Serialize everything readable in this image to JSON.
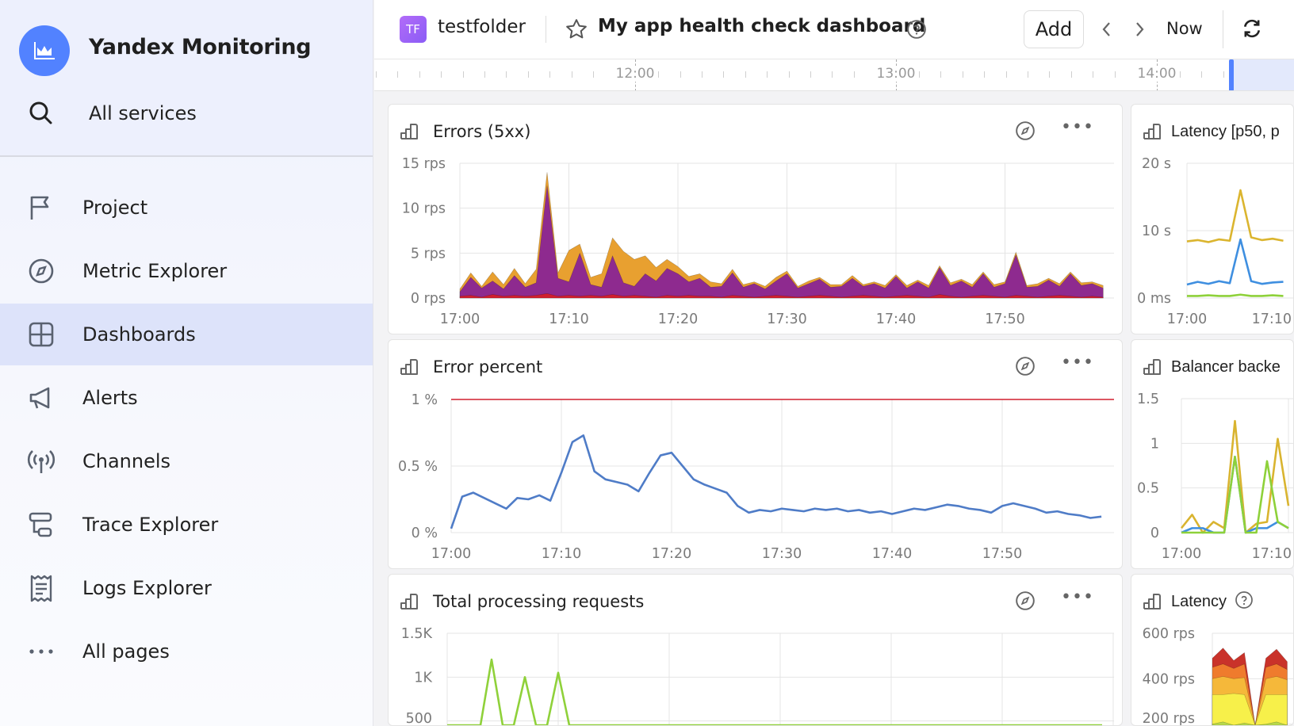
{
  "sidebar": {
    "app_title": "Yandex Monitoring",
    "search_label": "All services",
    "items": [
      {
        "label": "Project",
        "icon": "flag-icon"
      },
      {
        "label": "Metric Explorer",
        "icon": "compass-icon"
      },
      {
        "label": "Dashboards",
        "icon": "dashboard-grid-icon",
        "selected": true
      },
      {
        "label": "Alerts",
        "icon": "megaphone-icon"
      },
      {
        "label": "Channels",
        "icon": "broadcast-icon"
      },
      {
        "label": "Trace Explorer",
        "icon": "trace-icon"
      },
      {
        "label": "Logs Explorer",
        "icon": "logs-icon"
      },
      {
        "label": "All pages",
        "icon": "more-dots-icon"
      }
    ]
  },
  "header": {
    "folder_badge": "TF",
    "folder_name": "testfolder",
    "dashboard_title": "My app health check dashboard",
    "add_label": "Add",
    "now_label": "Now",
    "accent": "#5282ff",
    "badge_color": "#a062f7"
  },
  "timeline": {
    "labels": [
      "12:00",
      "13:00",
      "14:00"
    ]
  },
  "panels": [
    {
      "title": "Errors (5xx)"
    },
    {
      "title": "Error percent"
    },
    {
      "title": "Total processing requests"
    },
    {
      "title": "Latency [p50, p"
    },
    {
      "title": "Balancer backe"
    },
    {
      "title": "Latency"
    }
  ],
  "chart_data": [
    {
      "type": "area",
      "stacked": true,
      "title": "Errors (5xx)",
      "x_range": [
        "17:00",
        "18:00"
      ],
      "sample_interval": "1 min",
      "x_ticks": [
        "17:00",
        "17:10",
        "17:20",
        "17:30",
        "17:40",
        "17:50"
      ],
      "y_ticks": [
        "0 rps",
        "5 rps",
        "10 rps",
        "15 rps"
      ],
      "ylim": [
        0,
        15
      ],
      "grid": true,
      "series": [
        {
          "color": "#d01f2f",
          "values": [
            0.2,
            0.3,
            0.1,
            0.4,
            0.2,
            0.3,
            0.2,
            0.3,
            0.5,
            0.2,
            0.3,
            0.2,
            0.3,
            0.2,
            0.4,
            0.2,
            0.3,
            0.2,
            0.1,
            0.3,
            0.2,
            0.3,
            0.2,
            0.2,
            0.1,
            0.3,
            0.2,
            0.1,
            0.2,
            0.3,
            0.2,
            0.1,
            0.2,
            0.3,
            0.2,
            0.1,
            0.2,
            0.3,
            0.2,
            0.1,
            0.2,
            0.3,
            0.2,
            0.1,
            0.4,
            0.2,
            0.1,
            0.2,
            0.3,
            0.2,
            0.1,
            0.3,
            0.2,
            0.1,
            0.2,
            0.3,
            0.2,
            0.1,
            0.2,
            0.1
          ]
        },
        {
          "color": "#8e2a8f",
          "values": [
            0.5,
            2,
            1,
            1.5,
            0.8,
            2.2,
            1,
            1.4,
            12,
            2,
            1.5,
            4.8,
            1.2,
            1,
            4.3,
            1.5,
            1,
            2.5,
            1.8,
            3,
            2.5,
            1.5,
            2,
            1,
            1.2,
            2.5,
            1,
            1.5,
            0.8,
            1.6,
            2.5,
            1,
            1.4,
            1.8,
            1,
            1.2,
            2,
            1,
            1.4,
            1,
            2.2,
            0.8,
            1.6,
            1,
            3,
            1.2,
            1.8,
            1,
            2.4,
            1,
            1.5,
            4.5,
            1,
            1.2,
            1.8,
            1,
            2.5,
            1.3,
            1.4,
            1
          ]
        },
        {
          "color": "#e8a030",
          "values": [
            0.3,
            0.5,
            0.2,
            1,
            0.5,
            0.8,
            0.4,
            1.5,
            1.5,
            0.6,
            3.5,
            1,
            0.8,
            1.5,
            2,
            3.5,
            3,
            2,
            1.5,
            1,
            0.8,
            0.6,
            0.5,
            0.6,
            0.3,
            0.4,
            0.3,
            0.2,
            0.3,
            0.4,
            0.3,
            0.2,
            0.3,
            0.2,
            0.3,
            0.2,
            0.3,
            0.2,
            0.2,
            0.3,
            0.2,
            0.3,
            0.2,
            0.3,
            0.2,
            0.3,
            0.2,
            0.3,
            0.2,
            0.3,
            0.2,
            0.3,
            0.2,
            0.3,
            0.2,
            0.3,
            0.2,
            0.3,
            0.2,
            0.3
          ]
        }
      ]
    },
    {
      "type": "line",
      "title": "Error percent",
      "x_range": [
        "17:00",
        "18:00"
      ],
      "sample_interval": "1 min",
      "x_ticks": [
        "17:00",
        "17:10",
        "17:20",
        "17:30",
        "17:40",
        "17:50"
      ],
      "y_ticks": [
        "0 %",
        "0.5 %",
        "1 %"
      ],
      "ylim": [
        0,
        1
      ],
      "grid": true,
      "threshold": {
        "value": 1,
        "color": "#d01f2f"
      },
      "series": [
        {
          "color": "#4f7cc7",
          "values": [
            0.03,
            0.27,
            0.3,
            0.26,
            0.22,
            0.18,
            0.26,
            0.25,
            0.28,
            0.24,
            0.45,
            0.68,
            0.73,
            0.46,
            0.4,
            0.38,
            0.36,
            0.31,
            0.45,
            0.58,
            0.6,
            0.5,
            0.4,
            0.36,
            0.33,
            0.3,
            0.2,
            0.15,
            0.17,
            0.16,
            0.18,
            0.17,
            0.16,
            0.18,
            0.17,
            0.18,
            0.16,
            0.17,
            0.15,
            0.16,
            0.14,
            0.16,
            0.18,
            0.17,
            0.19,
            0.21,
            0.2,
            0.18,
            0.17,
            0.15,
            0.2,
            0.22,
            0.2,
            0.18,
            0.15,
            0.16,
            0.14,
            0.13,
            0.11,
            0.12
          ]
        }
      ]
    },
    {
      "type": "line",
      "title": "Total processing requests",
      "x_range": [
        "17:00",
        "18:00"
      ],
      "sample_interval": "1 min",
      "y_ticks": [
        "500",
        "1K",
        "1.5K"
      ],
      "ylim": [
        0,
        1500
      ],
      "grid": true,
      "series": [
        {
          "color": "#8fd13a",
          "values": [
            300,
            320,
            280,
            310,
            1200,
            300,
            290,
            1000,
            310,
            300,
            1050,
            290,
            300,
            310,
            400,
            300,
            290,
            320,
            450,
            300,
            310,
            300,
            290,
            300,
            310,
            300,
            290,
            300,
            310,
            300,
            290,
            300,
            310,
            300,
            290,
            300,
            310,
            300,
            290,
            300,
            310,
            300,
            420,
            300,
            290,
            300,
            310,
            300,
            290,
            300,
            310,
            300,
            290,
            300,
            310,
            300,
            290,
            300,
            310,
            300
          ]
        }
      ]
    },
    {
      "type": "line",
      "title": "Latency [p50, p",
      "x_range": [
        "17:00",
        "18:00"
      ],
      "sample_interval": "1 min",
      "x_ticks": [
        "17:00",
        "17:10"
      ],
      "y_ticks": [
        "0 ms",
        "10 s",
        "20 s"
      ],
      "ylim": [
        0,
        20
      ],
      "grid": true,
      "series": [
        {
          "color": "#dbb52f",
          "values": [
            8.4,
            8.6,
            8.3,
            8.7,
            8.5,
            16,
            9,
            8.6,
            8.8,
            8.5,
            16,
            8.8,
            8.5,
            8.7,
            8.6,
            8.4,
            8.6,
            8.5,
            8.7,
            8.5
          ]
        },
        {
          "color": "#3f8fe0",
          "values": [
            2,
            2.4,
            2.1,
            2.5,
            2.2,
            8.7,
            2.5,
            2.1,
            2.3,
            2.4,
            8.4,
            2.5,
            2.2,
            2.3,
            2.1,
            2.4,
            2.2,
            2.3,
            2.1,
            2.2
          ]
        },
        {
          "color": "#8ed13a",
          "values": [
            0.3,
            0.3,
            0.4,
            0.3,
            0.3,
            0.5,
            0.3,
            0.3,
            0.4,
            0.3,
            0.4,
            0.3,
            0.3,
            0.4,
            0.3,
            0.3,
            0.3,
            0.4,
            0.3,
            0.3
          ]
        }
      ]
    },
    {
      "type": "line",
      "title": "Balancer backe",
      "x_range": [
        "17:00",
        "18:00"
      ],
      "sample_interval": "1 min",
      "x_ticks": [
        "17:00",
        "17:10"
      ],
      "y_ticks": [
        "0",
        "0.5",
        "1",
        "1.5"
      ],
      "ylim": [
        0,
        1.5
      ],
      "grid": true,
      "series": [
        {
          "color": "#d9b430",
          "values": [
            0.05,
            0.2,
            0,
            0.12,
            0.05,
            1.25,
            0,
            0.1,
            0.12,
            1.05,
            0.3,
            0.25,
            0.1,
            0.15,
            0.1,
            0.2,
            0.1,
            0.12,
            0.1,
            0.15
          ]
        },
        {
          "color": "#3f8fe0",
          "values": [
            0,
            0.05,
            0.05,
            0,
            0,
            0.85,
            0,
            0.05,
            0.05,
            0.12,
            0.05,
            0.05,
            0,
            0.05,
            0,
            0.05,
            0,
            0.05,
            0,
            0.05
          ]
        },
        {
          "color": "#8ed13a",
          "values": [
            0,
            0,
            0,
            0,
            0,
            0.85,
            0,
            0,
            0.8,
            0.12,
            0.05,
            0,
            0,
            0.05,
            0,
            0,
            0,
            0.05,
            0,
            0
          ]
        }
      ]
    },
    {
      "type": "area",
      "stacked": true,
      "title": "Latency",
      "x_range": [
        "17:00",
        "18:00"
      ],
      "sample_interval": "1 min",
      "y_ticks": [
        "200 rps",
        "400 rps",
        "600 rps"
      ],
      "ylim": [
        0,
        600
      ],
      "grid": true,
      "series": [
        {
          "color": "#b7d94a",
          "values": [
            200,
            210,
            195,
            205,
            40,
            200,
            210,
            195,
            205,
            200,
            210,
            195,
            205,
            200,
            210,
            195,
            205,
            200,
            210,
            195
          ]
        },
        {
          "color": "#f7f04a",
          "values": [
            130,
            120,
            140,
            125,
            20,
            130,
            120,
            135,
            125,
            130,
            120,
            140,
            125,
            130,
            120,
            135,
            125,
            130,
            120,
            140
          ]
        },
        {
          "color": "#f5b83a",
          "values": [
            70,
            80,
            65,
            75,
            20,
            70,
            80,
            65,
            75,
            70,
            80,
            65,
            75,
            70,
            80,
            65,
            75,
            70,
            80,
            65
          ]
        },
        {
          "color": "#ef7b2d",
          "values": [
            50,
            55,
            45,
            60,
            15,
            50,
            55,
            45,
            60,
            50,
            55,
            45,
            60,
            50,
            55,
            45,
            60,
            50,
            55,
            45
          ]
        },
        {
          "color": "#c9322a",
          "values": [
            40,
            70,
            35,
            50,
            60,
            40,
            65,
            35,
            50,
            40,
            70,
            35,
            50,
            40,
            70,
            35,
            50,
            40,
            70,
            35
          ]
        }
      ]
    }
  ]
}
